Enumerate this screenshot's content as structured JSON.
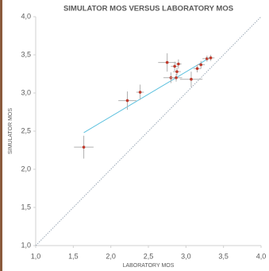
{
  "chart_data": {
    "type": "scatter",
    "title": "SIMULATOR MOS VERSUS LABORATORY MOS",
    "x_label": "LABORATORY MOS",
    "y_label": "SIMULATOR MOS",
    "x": [
      1.64,
      2.22,
      2.39,
      2.75,
      2.8,
      2.87,
      2.85,
      2.9,
      2.88,
      3.07,
      3.15,
      3.2,
      3.28,
      3.33
    ],
    "values": [
      2.29,
      2.9,
      3.01,
      3.4,
      3.2,
      3.2,
      3.35,
      3.38,
      3.28,
      3.18,
      3.32,
      3.37,
      3.45,
      3.46
    ],
    "xerr": [
      0.13,
      0.12,
      0.05,
      0.12,
      0.1,
      0.08,
      0.05,
      0.04,
      0.05,
      0.15,
      0.05,
      0.05,
      0.06,
      0.05
    ],
    "yerr": [
      0.15,
      0.12,
      0.1,
      0.12,
      0.07,
      0.05,
      0.06,
      0.06,
      0.05,
      0.1,
      0.05,
      0.05,
      0.04,
      0.04
    ],
    "color": "#c0392b",
    "error_color": "#b0b0b0",
    "trendline": {
      "x": [
        1.64,
        3.33
      ],
      "values": [
        2.48,
        3.47
      ],
      "color": "#5bc0de"
    },
    "reference_color": "#9aa7b5",
    "xlim": [
      1.0,
      4.0
    ],
    "ylim": [
      1.0,
      4.0
    ],
    "xticks": [
      {
        "value": 1.0,
        "label": "1,0"
      },
      {
        "value": 1.5,
        "label": "1,5"
      },
      {
        "value": 2.0,
        "label": "2,0"
      },
      {
        "value": 2.5,
        "label": "2,5"
      },
      {
        "value": 3.0,
        "label": "3,0"
      },
      {
        "value": 3.5,
        "label": "3,5"
      },
      {
        "value": 4.0,
        "label": "4,0"
      }
    ],
    "yticks": [
      {
        "value": 1.0,
        "label": "1,0"
      },
      {
        "value": 1.5,
        "label": "1,5"
      },
      {
        "value": 2.0,
        "label": "2,0"
      },
      {
        "value": 2.5,
        "label": "2,5"
      },
      {
        "value": 3.0,
        "label": "3,0"
      },
      {
        "value": 3.5,
        "label": "3,5"
      },
      {
        "value": 4.0,
        "label": "4,0"
      }
    ]
  }
}
